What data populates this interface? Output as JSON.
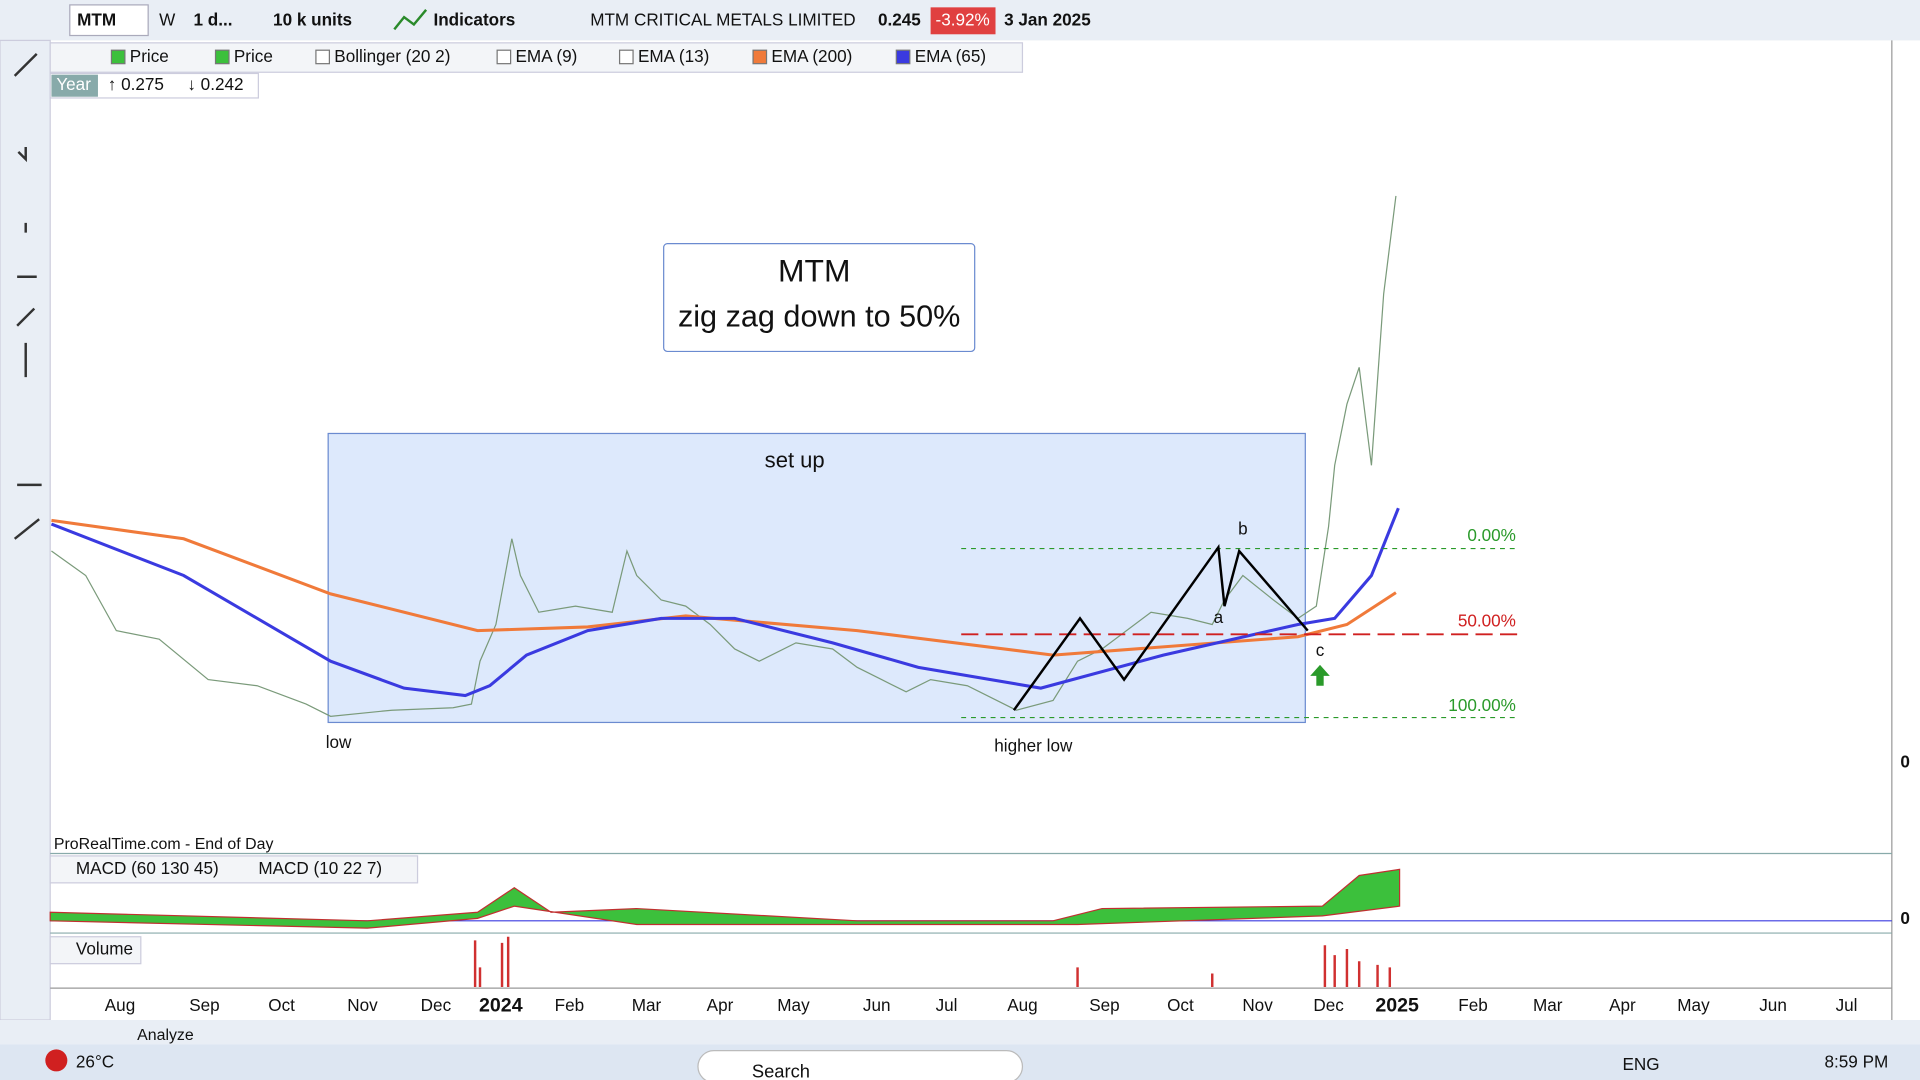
{
  "toolbar": {
    "symbol": "MTM",
    "period_code": "W",
    "interval": "1 d...",
    "units": "10 k units",
    "indicators_button": "Indicators",
    "instrument": "MTM CRITICAL METALS LIMITED",
    "price": "0.245",
    "change": "-3.92%",
    "date": "3 Jan 2025"
  },
  "indicator_bar": [
    "Price",
    "Price",
    "Bollinger (20 2)",
    "EMA (9)",
    "EMA (13)",
    "EMA (200)",
    "EMA (65)"
  ],
  "year_range": {
    "label": "Year",
    "high": "↑ 0.275",
    "low": "↓ 0.242"
  },
  "annotations": {
    "title": "MTM",
    "subtitle": "zig zag down to 50%",
    "setup": "set up",
    "low": "low",
    "higher_low": "higher low",
    "a": "a",
    "b": "b",
    "c": "c",
    "fib_0": "0.00%",
    "fib_50": "50.00%",
    "fib_100": "100.00%"
  },
  "source": "ProRealTime.com - End of Day",
  "panels": {
    "macd": [
      "MACD (60 130 45)",
      "MACD (10 22 7)"
    ],
    "volume": "Volume"
  },
  "x_axis": [
    "Aug",
    "Sep",
    "Oct",
    "Nov",
    "Dec",
    "2024",
    "Feb",
    "Mar",
    "Apr",
    "May",
    "Jun",
    "Jul",
    "Aug",
    "Sep",
    "Oct",
    "Nov",
    "Dec",
    "2025",
    "Feb",
    "Mar",
    "Apr",
    "May",
    "Jun",
    "Jul"
  ],
  "y_axis": [
    "0",
    "0"
  ],
  "bottom_tab": "Analyze",
  "taskbar": {
    "weather": "26°C",
    "search": "Search",
    "language": "ENG",
    "time": "8:59 PM"
  }
}
